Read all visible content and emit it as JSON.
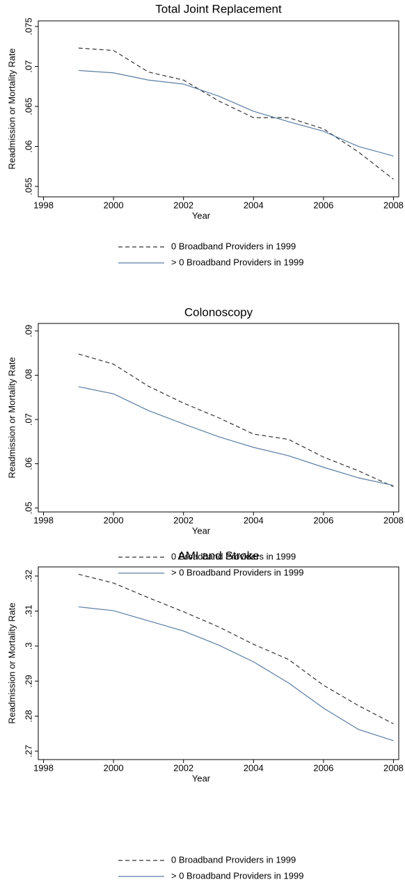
{
  "chart_data": [
    {
      "type": "line",
      "title": "Total Joint Replacement",
      "x_label": "Year",
      "y_label": "Readmission or Mortality Rate",
      "x": [
        1999,
        2000,
        2001,
        2002,
        2003,
        2004,
        2005,
        2006,
        2007,
        2008
      ],
      "series": [
        {
          "name": "0 Broadband Providers in 1999",
          "color": "#333333",
          "line_style": "dashed",
          "values": [
            0.0723,
            0.072,
            0.0693,
            0.0683,
            0.0657,
            0.0636,
            0.0636,
            0.0622,
            0.0593,
            0.0559
          ]
        },
        {
          "name": "> 0 Broadband Providers in 1999",
          "color": "#5a7ca3",
          "line_style": "solid",
          "values": [
            0.0695,
            0.0692,
            0.0683,
            0.0678,
            0.0663,
            0.0644,
            0.0631,
            0.0619,
            0.06,
            0.0588
          ]
        }
      ],
      "xlim": [
        1997.85,
        2008.15
      ],
      "xticks": [
        1998,
        2000,
        2002,
        2004,
        2006,
        2008
      ],
      "ylim": [
        0.0537,
        0.0757
      ],
      "yticks": [
        {
          "value": 0.055,
          "label": ".055"
        },
        {
          "value": 0.06,
          "label": ".06"
        },
        {
          "value": 0.065,
          "label": ".065"
        },
        {
          "value": 0.07,
          "label": ".07"
        },
        {
          "value": 0.075,
          "label": ".075"
        }
      ],
      "grid": false
    },
    {
      "type": "line",
      "title": "Colonoscopy",
      "x_label": "Year",
      "y_label": "Readmission or Mortality Rate",
      "x": [
        1999,
        2000,
        2001,
        2002,
        2003,
        2004,
        2005,
        2006,
        2007,
        2008
      ],
      "series": [
        {
          "name": "0 Broadband Providers in 1999",
          "color": "#333333",
          "line_style": "dashed",
          "values": [
            0.0848,
            0.0825,
            0.0775,
            0.0737,
            0.0704,
            0.0667,
            0.0655,
            0.0615,
            0.0584,
            0.0548
          ]
        },
        {
          "name": "> 0 Broadband Providers in 1999",
          "color": "#5a7ca3",
          "line_style": "solid",
          "values": [
            0.0774,
            0.0758,
            0.072,
            0.069,
            0.0661,
            0.0637,
            0.0618,
            0.0592,
            0.0568,
            0.0551
          ]
        }
      ],
      "xlim": [
        1997.85,
        2008.15
      ],
      "xticks": [
        1998,
        2000,
        2002,
        2004,
        2006,
        2008
      ],
      "ylim": [
        0.0491,
        0.0917
      ],
      "yticks": [
        {
          "value": 0.05,
          "label": ".05"
        },
        {
          "value": 0.06,
          "label": ".06"
        },
        {
          "value": 0.07,
          "label": ".07"
        },
        {
          "value": 0.08,
          "label": ".08"
        },
        {
          "value": 0.09,
          "label": ".09"
        }
      ],
      "grid": false
    },
    {
      "type": "line",
      "title": "AMI and Stroke",
      "x_label": "Year",
      "y_label": "Readmission or Mortality Rate",
      "x": [
        1999,
        2000,
        2001,
        2002,
        2003,
        2004,
        2005,
        2006,
        2007,
        2008
      ],
      "series": [
        {
          "name": "0 Broadband Providers in 1999",
          "color": "#333333",
          "line_style": "dashed",
          "values": [
            0.3205,
            0.318,
            0.3138,
            0.3098,
            0.3055,
            0.3005,
            0.2962,
            0.2888,
            0.283,
            0.2778
          ]
        },
        {
          "name": "> 0 Broadband Providers in 1999",
          "color": "#5a7ca3",
          "line_style": "solid",
          "values": [
            0.3112,
            0.3101,
            0.3072,
            0.3043,
            0.3003,
            0.2955,
            0.2895,
            0.2823,
            0.2762,
            0.273
          ]
        }
      ],
      "xlim": [
        1997.85,
        2008.15
      ],
      "xticks": [
        1998,
        2000,
        2002,
        2004,
        2006,
        2008
      ],
      "ylim": [
        0.2676,
        0.3226
      ],
      "yticks": [
        {
          "value": 0.27,
          "label": ".27"
        },
        {
          "value": 0.28,
          "label": ".28"
        },
        {
          "value": 0.29,
          "label": ".29"
        },
        {
          "value": 0.3,
          "label": ".3"
        },
        {
          "value": 0.31,
          "label": ".31"
        },
        {
          "value": 0.32,
          "label": ".32"
        }
      ],
      "grid": false
    }
  ]
}
